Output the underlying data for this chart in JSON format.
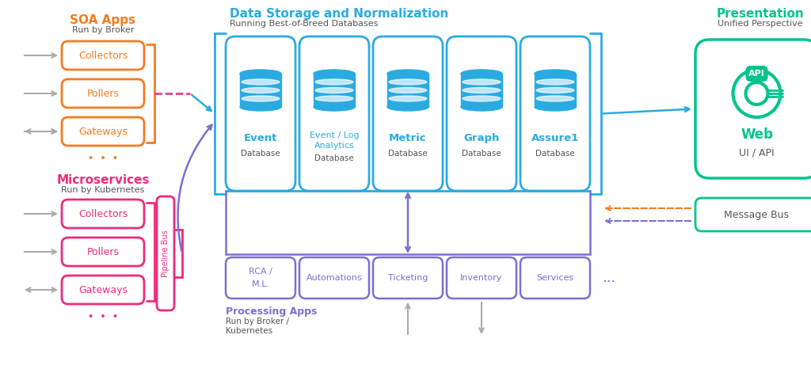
{
  "bg_color": "#ffffff",
  "orange": "#F47B20",
  "red": "#EE2A7B",
  "blue": "#29ABE2",
  "green": "#00C48C",
  "purple": "#7B6FD1",
  "gray": "#AAAAAA",
  "dark_gray": "#555555",
  "soa_title": "SOA Apps",
  "soa_sub": "Run by Broker",
  "soa_boxes": [
    "Collectors",
    "Pollers",
    "Gateways"
  ],
  "micro_title": "Microservices",
  "micro_sub": "Run by Kubernetes",
  "micro_boxes": [
    "Collectors",
    "Pollers",
    "Gateways"
  ],
  "pipeline_label": "Pipeline Bus",
  "db_section_title": "Data Storage and Normalization",
  "db_section_sub": "Running Best-of-Breed Databases",
  "db_names": [
    "Event",
    "Event / Log\nAnalytics",
    "Metric",
    "Graph",
    "Assure1"
  ],
  "db_sub": "Database",
  "proc_title": "Processing Apps",
  "proc_sub": "Run by Broker /\nKubernetes",
  "proc_boxes": [
    "RCA /\nM.L.",
    "Automations",
    "Ticketing",
    "Inventory",
    "Services"
  ],
  "pres_title": "Presentation",
  "pres_sub": "Unified Perspective",
  "web_label": "Web",
  "web_sub": "UI / API",
  "msgbus_label": "Message Bus"
}
